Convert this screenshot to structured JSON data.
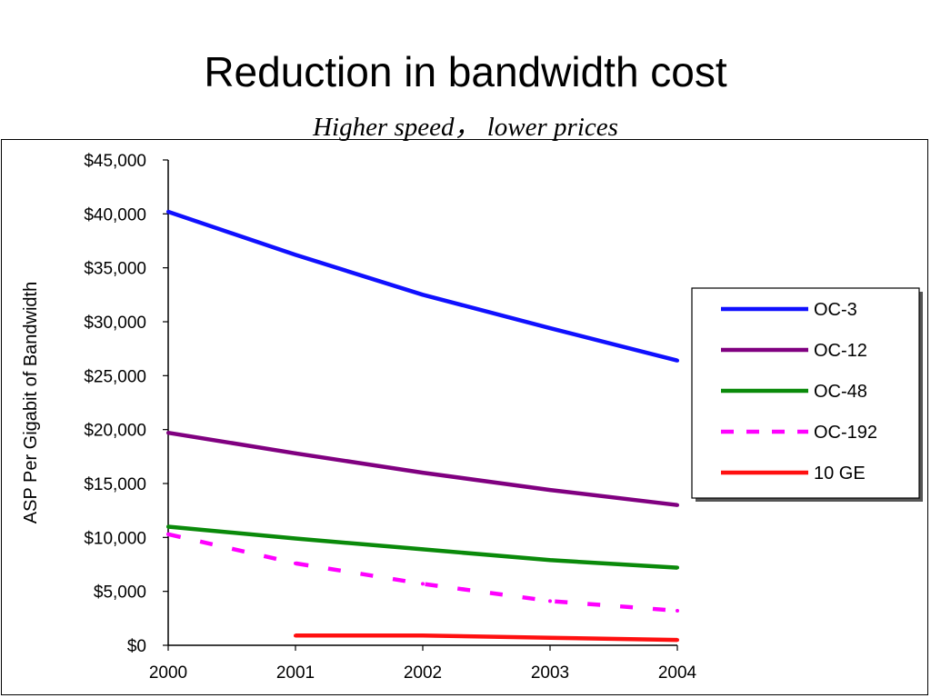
{
  "slide": {
    "title": "Reduction in bandwidth cost",
    "subtitle": "Higher speed， lower prices"
  },
  "chart_data": {
    "type": "line",
    "title": "Reduction in bandwidth cost",
    "subtitle": "Higher speed， lower prices",
    "xlabel": "",
    "ylabel": "ASP Per Gigabit of Bandwidth",
    "x": [
      2000,
      2001,
      2002,
      2003,
      2004
    ],
    "x_tick_labels": [
      "2000",
      "2001",
      "2002",
      "2003",
      "2004"
    ],
    "y_tick_values": [
      0,
      5000,
      10000,
      15000,
      20000,
      25000,
      30000,
      35000,
      40000,
      45000
    ],
    "y_tick_labels": [
      "$0",
      "$5,000",
      "$10,000",
      "$15,000",
      "$20,000",
      "$25,000",
      "$30,000",
      "$35,000",
      "$40,000",
      "$45,000"
    ],
    "xlim": [
      2000,
      2004
    ],
    "ylim": [
      0,
      45000
    ],
    "grid": false,
    "legend_position": "right",
    "series": [
      {
        "name": "OC-3",
        "color": "#1010ff",
        "dashed": false,
        "x": [
          2000,
          2001,
          2002,
          2003,
          2004
        ],
        "values": [
          40200,
          36200,
          32500,
          29400,
          26400
        ]
      },
      {
        "name": "OC-12",
        "color": "#800080",
        "dashed": false,
        "x": [
          2000,
          2001,
          2002,
          2003,
          2004
        ],
        "values": [
          19700,
          17800,
          16000,
          14400,
          13000
        ]
      },
      {
        "name": "OC-48",
        "color": "#0a8a0a",
        "dashed": false,
        "x": [
          2000,
          2001,
          2002,
          2003,
          2004
        ],
        "values": [
          11000,
          9900,
          8900,
          7900,
          7200
        ]
      },
      {
        "name": "OC-192",
        "color": "#ff00ff",
        "dashed": true,
        "x": [
          2000,
          2001,
          2002,
          2003,
          2004
        ],
        "values": [
          10300,
          7600,
          5700,
          4100,
          3200
        ]
      },
      {
        "name": "10 GE",
        "color": "#ff1010",
        "dashed": false,
        "x": [
          2001,
          2002,
          2003,
          2004
        ],
        "values": [
          900,
          900,
          700,
          500
        ]
      }
    ]
  }
}
